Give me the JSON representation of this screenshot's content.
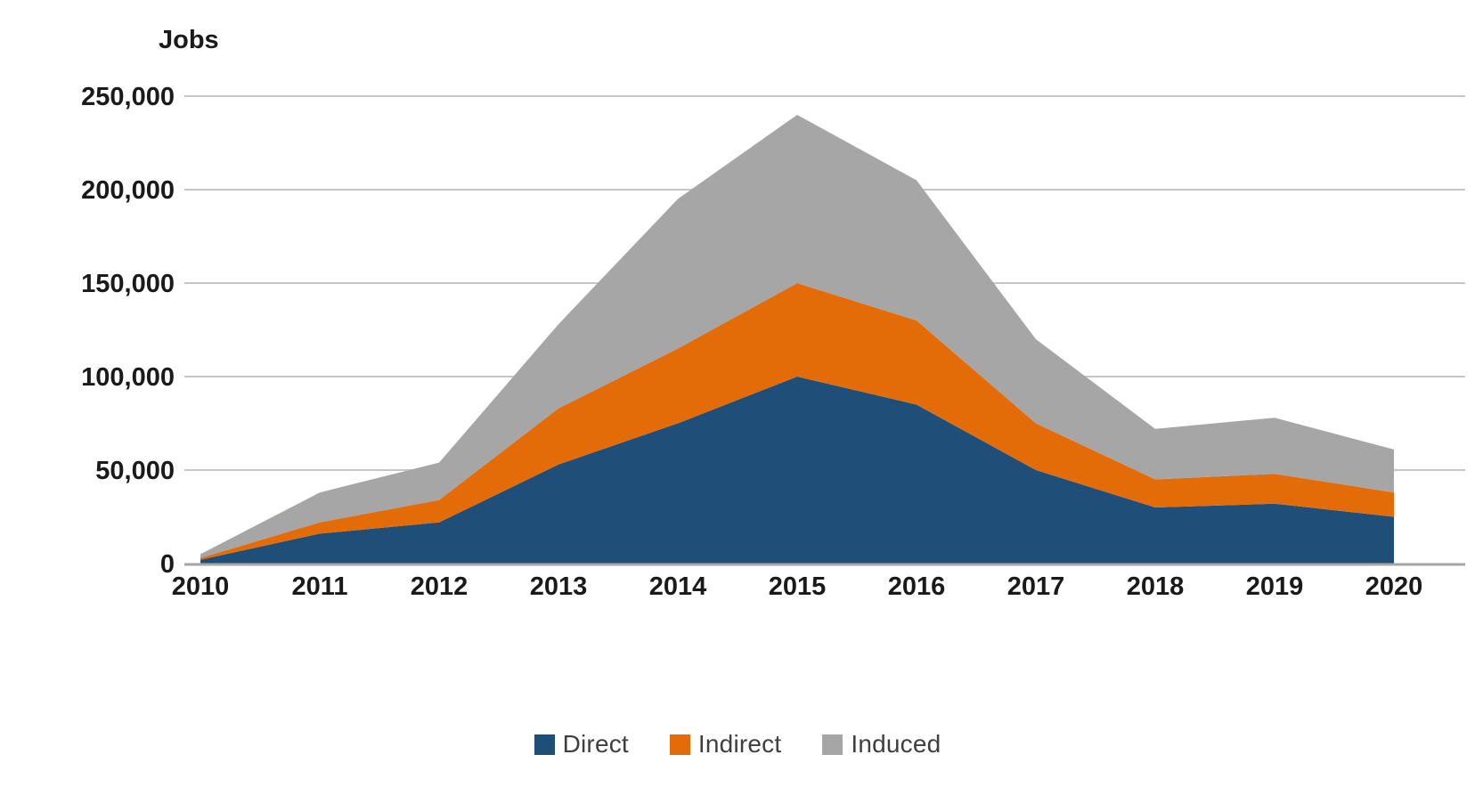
{
  "title": "Jobs",
  "chart_data": {
    "type": "area",
    "stacked": true,
    "title": "Jobs",
    "ylabel": "Jobs",
    "xlabel": "",
    "x": [
      2010,
      2011,
      2012,
      2013,
      2014,
      2015,
      2016,
      2017,
      2018,
      2019,
      2020
    ],
    "xticks": [
      "2010",
      "2011",
      "2012",
      "2013",
      "2014",
      "2015",
      "2016",
      "2017",
      "2018",
      "2019",
      "2020"
    ],
    "series": [
      {
        "name": "Direct",
        "color": "#1F4E79",
        "values": [
          2000,
          16000,
          22000,
          53000,
          75000,
          100000,
          85000,
          50000,
          30000,
          32000,
          25000
        ]
      },
      {
        "name": "Indirect",
        "color": "#E36C09",
        "values": [
          1000,
          6000,
          12000,
          30000,
          40000,
          50000,
          45000,
          25000,
          15000,
          16000,
          13000
        ]
      },
      {
        "name": "Induced",
        "color": "#A6A6A6",
        "values": [
          2000,
          16000,
          20000,
          45000,
          80000,
          90000,
          75000,
          45000,
          27000,
          30000,
          23000
        ]
      }
    ],
    "stacked_totals": [
      5000,
      38000,
      54000,
      128000,
      195000,
      240000,
      205000,
      120000,
      72000,
      78000,
      61000
    ],
    "ylim": [
      0,
      250000
    ],
    "ytick_interval": 50000,
    "yticks": [
      "0",
      "50,000",
      "100,000",
      "150,000",
      "200,000",
      "250,000"
    ],
    "grid": true,
    "gridline_color": "#C6C6C6",
    "axis_line_color": "#A6A6A6",
    "tick_label_color": "#1a1a1a",
    "legend_position": "bottom"
  }
}
